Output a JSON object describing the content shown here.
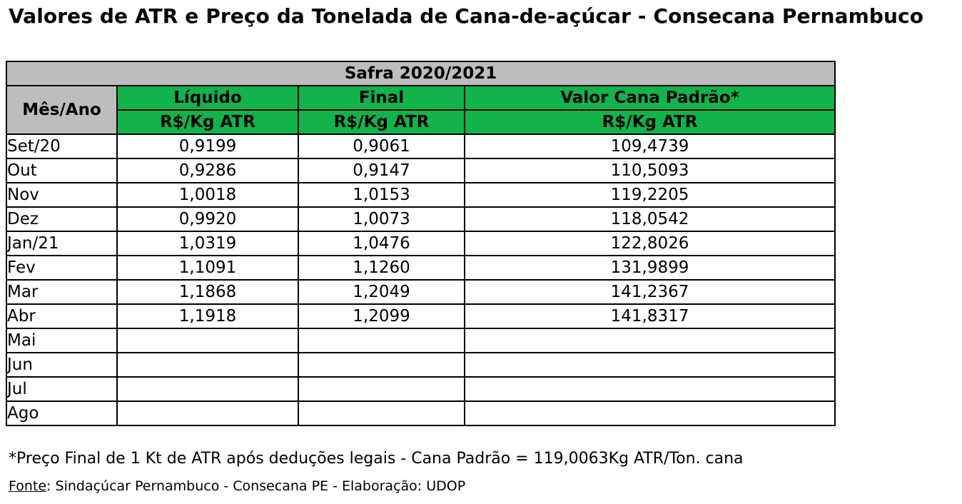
{
  "title": "Valores de ATR e Preço da Tonelada de Cana-de-açúcar - Consecana Pernambuco",
  "table": {
    "safra": "Safra 2020/2021",
    "month_header": "Mês/Ano",
    "columns": [
      {
        "name": "Líquido",
        "unit": "R$/Kg  ATR"
      },
      {
        "name": "Final",
        "unit": "R$/Kg  ATR"
      },
      {
        "name": "Valor Cana Padrão*",
        "unit": "R$/Kg  ATR"
      }
    ],
    "rows": [
      {
        "month": "Set/20",
        "liquido": "0,9199",
        "final": "0,9061",
        "valor": "109,4739"
      },
      {
        "month": "Out",
        "liquido": "0,9286",
        "final": "0,9147",
        "valor": "110,5093"
      },
      {
        "month": "Nov",
        "liquido": "1,0018",
        "final": "1,0153",
        "valor": "119,2205"
      },
      {
        "month": "Dez",
        "liquido": "0,9920",
        "final": "1,0073",
        "valor": "118,0542"
      },
      {
        "month": "Jan/21",
        "liquido": "1,0319",
        "final": "1,0476",
        "valor": "122,8026"
      },
      {
        "month": "Fev",
        "liquido": "1,1091",
        "final": "1,1260",
        "valor": "131,9899"
      },
      {
        "month": "Mar",
        "liquido": "1,1868",
        "final": "1,2049",
        "valor": "141,2367"
      },
      {
        "month": "Abr",
        "liquido": "1,1918",
        "final": "1,2099",
        "valor": "141,8317"
      },
      {
        "month": "Mai",
        "liquido": "",
        "final": "",
        "valor": ""
      },
      {
        "month": "Jun",
        "liquido": "",
        "final": "",
        "valor": ""
      },
      {
        "month": "Jul",
        "liquido": "",
        "final": "",
        "valor": ""
      },
      {
        "month": "Ago",
        "liquido": "",
        "final": "",
        "valor": ""
      }
    ]
  },
  "footnote": "*Preço Final de 1 Kt de ATR após deduções legais - Cana Padrão = 119,0063Kg ATR/Ton. cana",
  "source": {
    "label": "Fonte",
    "text": ": Sindaçúcar Pernambuco - Consecana PE - Elaboração: UDOP"
  },
  "colors": {
    "header_gray": "#bdbdbd",
    "header_green": "#12b34b"
  }
}
